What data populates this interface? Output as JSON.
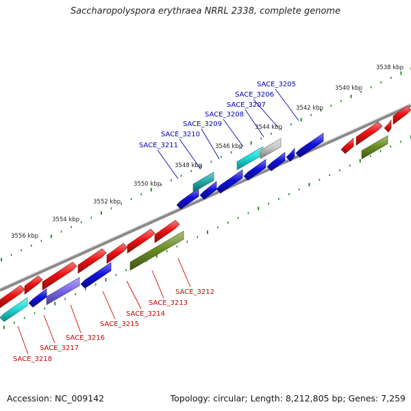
{
  "title": "Saccharopolyspora erythraea NRRL 2338, complete genome",
  "footer": {
    "accession": "Accession: NC_009142",
    "stats": "Topology: circular; Length: 8,212,805 bp; Genes: 7,259"
  },
  "colors": {
    "backbone": "#8a8a8a",
    "forward_cds": "#ee1111",
    "reverse_cds": "#1111dd",
    "rna_cyan": "#22dddd",
    "rna_teal": "#22aaaa",
    "misc_olive": "#6b8e23",
    "grey_feature": "#c8c8c8",
    "lavender_feature": "#7b68ee",
    "tick_green": "#228b22",
    "top_label": "#0000aa",
    "bottom_label": "#cc0000"
  },
  "ruler_labels": [
    "3538 kbp",
    "3540 kbp",
    "3542 kbp",
    "3544 kbp",
    "3546 kbp",
    "3548 kbp",
    "3550 kbp",
    "3552 kbp",
    "3554 kbp",
    "3556 kbp"
  ],
  "top_gene_labels": [
    "SACE_3205",
    "SACE_3206",
    "SACE_3207",
    "SACE_3208",
    "SACE_3209",
    "SACE_3210",
    "SACE_3211"
  ],
  "bottom_gene_labels": [
    "SACE_3212",
    "SACE_3213",
    "SACE_3214",
    "SACE_3215",
    "SACE_3216",
    "SACE_3217",
    "SACE_3218"
  ]
}
